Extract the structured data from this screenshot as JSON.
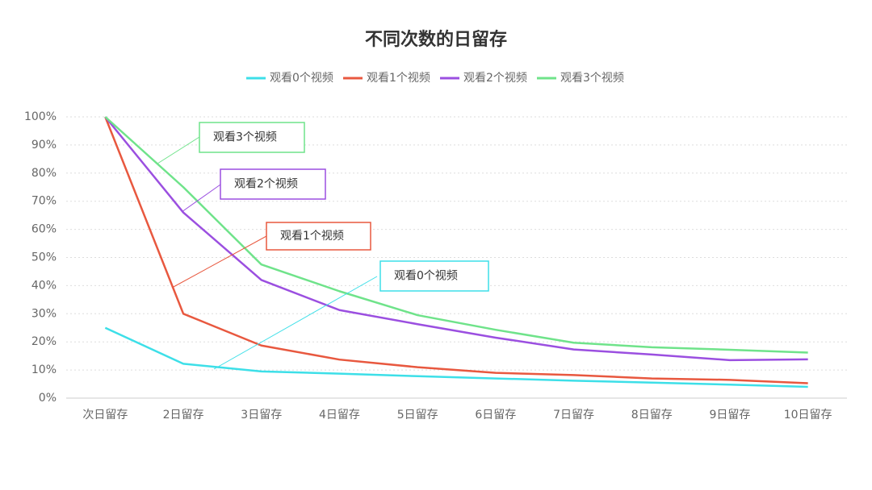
{
  "chart_data": {
    "type": "line",
    "title": "不同次数的日留存",
    "categories": [
      "次日留存",
      "2日留存",
      "3日留存",
      "4日留存",
      "5日留存",
      "6日留存",
      "7日留存",
      "8日留存",
      "9日留存",
      "10日留存"
    ],
    "series": [
      {
        "name": "观看0个视频",
        "color": "#3ddfe8",
        "values": [
          25,
          12.2,
          9.5,
          8.7,
          7.8,
          7,
          6.2,
          5.5,
          4.8,
          4
        ]
      },
      {
        "name": "观看1个视频",
        "color": "#e8583f",
        "values": [
          100,
          30,
          18.7,
          13.7,
          11,
          9,
          8.2,
          7,
          6.5,
          5.3
        ]
      },
      {
        "name": "观看2个视频",
        "color": "#9b4fe0",
        "values": [
          100,
          66,
          42,
          31.3,
          26.3,
          21.5,
          17.3,
          15.5,
          13.5,
          13.8
        ]
      },
      {
        "name": "观看3个视频",
        "color": "#6fe38a",
        "values": [
          100,
          75,
          47.5,
          38,
          29.5,
          24.3,
          19.7,
          18.1,
          17.2,
          16.2
        ]
      }
    ],
    "ylim": [
      0,
      100
    ],
    "yticks": [
      {
        "value": 0,
        "label": "0%"
      },
      {
        "value": 10,
        "label": "10%"
      },
      {
        "value": 20,
        "label": "20%"
      },
      {
        "value": 30,
        "label": "30%"
      },
      {
        "value": 40,
        "label": "40%"
      },
      {
        "value": 50,
        "label": "50%"
      },
      {
        "value": 60,
        "label": "60%"
      },
      {
        "value": 70,
        "label": "70%"
      },
      {
        "value": 80,
        "label": "80%"
      },
      {
        "value": 90,
        "label": "90%"
      },
      {
        "value": 100,
        "label": "100%"
      }
    ],
    "grid": true,
    "annotations": [
      {
        "text": "观看0个视频",
        "color": "#3ddfe8"
      },
      {
        "text": "观看1个视频",
        "color": "#e8583f"
      },
      {
        "text": "观看2个视频",
        "color": "#9b4fe0"
      },
      {
        "text": "观看3个视频",
        "color": "#6fe38a"
      }
    ]
  }
}
